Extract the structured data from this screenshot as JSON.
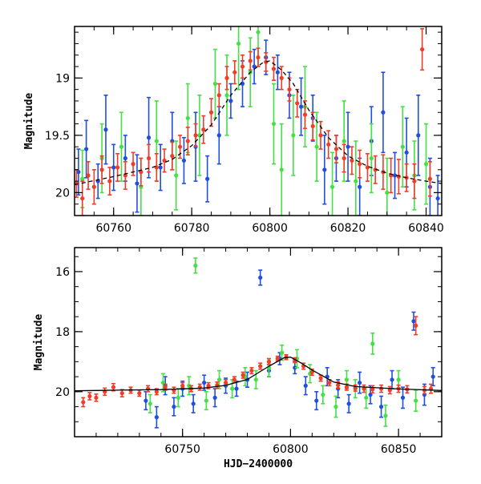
{
  "colors": {
    "blue": "#1f4fe0",
    "green": "#44e044",
    "red": "#f03c28",
    "model": "#000000"
  },
  "chart_data": [
    {
      "type": "scatter",
      "title": "",
      "xlabel": "",
      "ylabel": "Magnitude",
      "xlim": [
        60750,
        60844
      ],
      "ylim": [
        20.2,
        18.55
      ],
      "y_inverted": true,
      "grid": false,
      "xticks": [
        "60760",
        "60780",
        "60800",
        "60820",
        "60840"
      ],
      "yticks": [
        "19",
        "19.5",
        "20"
      ],
      "model_curve": {
        "style": "dashed",
        "x": [
          60750,
          60760,
          60770,
          60775,
          60780,
          60785,
          60790,
          60795,
          60798,
          60800,
          60803,
          60806,
          60810,
          60815,
          60820,
          60825,
          60830,
          60835,
          60840,
          60844
        ],
        "y": [
          19.93,
          19.86,
          19.78,
          19.71,
          19.59,
          19.41,
          19.15,
          18.95,
          18.87,
          18.85,
          18.93,
          19.05,
          19.28,
          19.52,
          19.68,
          19.77,
          19.83,
          19.87,
          19.9,
          19.92
        ]
      },
      "series": [
        {
          "color": "blue",
          "x": [
            60751,
            60753,
            60756,
            60758,
            60760,
            60763,
            60766,
            60769,
            60772,
            60775,
            60778,
            60781,
            60784,
            60787,
            60790,
            60793,
            60796,
            60799,
            60802,
            60805,
            60808,
            60811,
            60814,
            60817,
            60820,
            60823,
            60826,
            60829,
            60832,
            60835,
            60838,
            60841,
            60843
          ],
          "y": [
            19.82,
            19.62,
            19.9,
            19.45,
            19.78,
            19.7,
            19.92,
            19.52,
            19.78,
            19.55,
            19.72,
            19.6,
            19.88,
            19.5,
            19.2,
            19.05,
            18.9,
            18.82,
            18.95,
            19.15,
            19.25,
            19.35,
            19.8,
            19.7,
            19.6,
            19.95,
            19.55,
            19.3,
            19.85,
            19.65,
            19.5,
            19.95,
            20.05
          ],
          "err": [
            0.2,
            0.25,
            0.15,
            0.3,
            0.2,
            0.2,
            0.25,
            0.35,
            0.2,
            0.25,
            0.2,
            0.3,
            0.2,
            0.25,
            0.15,
            0.2,
            0.15,
            0.15,
            0.15,
            0.2,
            0.25,
            0.2,
            0.3,
            0.2,
            0.3,
            0.25,
            0.3,
            0.35,
            0.2,
            0.3,
            0.35,
            0.25,
            0.2
          ]
        },
        {
          "color": "green",
          "x": [
            60752,
            60757,
            60762,
            60767,
            60771,
            60776,
            60779,
            60782,
            60786,
            60789,
            60792,
            60795,
            60797,
            60801,
            60803,
            60806,
            60809,
            60812,
            60816,
            60819,
            60822,
            60826,
            60830,
            60834,
            60837,
            60840
          ],
          "y": [
            19.88,
            19.7,
            19.6,
            19.95,
            19.55,
            19.85,
            19.35,
            19.5,
            19.05,
            19.15,
            18.7,
            18.95,
            18.6,
            19.4,
            19.8,
            19.5,
            19.25,
            19.6,
            19.95,
            19.55,
            19.9,
            19.7,
            20.0,
            19.6,
            19.85,
            19.75
          ],
          "err": [
            0.25,
            0.3,
            0.3,
            0.25,
            0.35,
            0.3,
            0.3,
            0.35,
            0.3,
            0.35,
            0.4,
            0.3,
            0.3,
            0.35,
            0.4,
            0.35,
            0.35,
            0.3,
            0.3,
            0.35,
            0.35,
            0.3,
            0.3,
            0.35,
            0.3,
            0.35
          ]
        },
        {
          "color": "red",
          "x": [
            60750.5,
            60752,
            60753.5,
            60755,
            60757,
            60759,
            60761,
            60763,
            60765,
            60767,
            60769,
            60771,
            60773,
            60775,
            60777,
            60779,
            60781,
            60783,
            60785,
            60787,
            60789,
            60791,
            60793,
            60795,
            60797,
            60799,
            60801,
            60803,
            60805,
            60807,
            60809,
            60811,
            60813,
            60815,
            60817,
            60819,
            60821,
            60823,
            60825,
            60827,
            60829,
            60831,
            60833,
            60835,
            60837,
            60839,
            60841
          ],
          "y": [
            19.92,
            20.05,
            19.85,
            19.95,
            19.8,
            19.9,
            19.78,
            19.85,
            19.75,
            19.82,
            19.7,
            19.78,
            19.72,
            19.68,
            19.6,
            19.55,
            19.5,
            19.45,
            19.3,
            19.15,
            19.0,
            18.95,
            18.9,
            18.85,
            18.82,
            18.86,
            18.92,
            19.0,
            19.1,
            19.22,
            19.32,
            19.42,
            19.5,
            19.58,
            19.62,
            19.7,
            19.72,
            19.75,
            19.78,
            19.8,
            19.82,
            19.85,
            19.86,
            19.87,
            19.9,
            18.75,
            19.88
          ],
          "err": [
            0.12,
            0.15,
            0.12,
            0.15,
            0.12,
            0.12,
            0.12,
            0.12,
            0.1,
            0.12,
            0.12,
            0.12,
            0.1,
            0.12,
            0.1,
            0.12,
            0.1,
            0.12,
            0.12,
            0.1,
            0.1,
            0.1,
            0.1,
            0.08,
            0.08,
            0.08,
            0.1,
            0.1,
            0.1,
            0.12,
            0.12,
            0.12,
            0.12,
            0.12,
            0.12,
            0.12,
            0.12,
            0.12,
            0.12,
            0.12,
            0.15,
            0.15,
            0.15,
            0.12,
            0.15,
            0.18,
            0.15
          ]
        }
      ]
    },
    {
      "type": "scatter",
      "title": "",
      "xlabel": "HJD−2400000",
      "ylabel": "Magnitude",
      "xlim": [
        60700,
        60870
      ],
      "ylim": [
        21.5,
        15.2
      ],
      "y_inverted": true,
      "grid": false,
      "xticks": [
        "60750",
        "60800",
        "60850"
      ],
      "yticks": [
        "16",
        "18",
        "20"
      ],
      "model_curve": {
        "style": "solid",
        "x": [
          60700,
          60720,
          60740,
          60760,
          60770,
          60780,
          60790,
          60797,
          60800,
          60805,
          60810,
          60820,
          60830,
          60850,
          60870
        ],
        "y": [
          19.97,
          19.95,
          19.93,
          19.88,
          19.79,
          19.59,
          19.15,
          18.87,
          18.85,
          19.05,
          19.28,
          19.68,
          19.83,
          19.91,
          19.96
        ]
      },
      "series": [
        {
          "color": "blue",
          "x": [
            60733,
            60738,
            60742,
            60746,
            60750,
            60755,
            60760,
            60765,
            60770,
            60775,
            60780,
            60786,
            60790,
            60795,
            60802,
            60807,
            60812,
            60817,
            60822,
            60827,
            60832,
            60837,
            60842,
            60847,
            60852,
            60857,
            60862,
            60866
          ],
          "y": [
            20.3,
            20.85,
            19.8,
            20.5,
            19.9,
            20.4,
            19.7,
            20.2,
            19.8,
            19.9,
            19.6,
            16.2,
            19.3,
            18.9,
            19.2,
            19.8,
            20.3,
            19.5,
            19.9,
            20.4,
            19.7,
            20.1,
            20.5,
            19.6,
            20.2,
            17.65,
            20.1,
            19.5
          ],
          "err": [
            0.3,
            0.35,
            0.3,
            0.3,
            0.25,
            0.3,
            0.25,
            0.3,
            0.25,
            0.25,
            0.25,
            0.25,
            0.2,
            0.2,
            0.2,
            0.3,
            0.3,
            0.3,
            0.3,
            0.3,
            0.35,
            0.3,
            0.35,
            0.3,
            0.35,
            0.3,
            0.35,
            0.3
          ]
        },
        {
          "color": "green",
          "x": [
            60735,
            60741,
            60748,
            60753,
            60756,
            60761,
            60767,
            60773,
            60779,
            60784,
            60790,
            60796,
            60803,
            60809,
            60815,
            60821,
            60826,
            60830,
            60835,
            60838,
            60844,
            60850,
            60858
          ],
          "y": [
            20.4,
            19.7,
            20.2,
            19.8,
            15.8,
            20.3,
            19.6,
            19.9,
            19.5,
            19.6,
            19.2,
            18.7,
            18.9,
            19.4,
            20.1,
            20.5,
            19.6,
            19.9,
            20.2,
            18.4,
            20.8,
            19.6,
            20.3
          ],
          "err": [
            0.3,
            0.3,
            0.3,
            0.3,
            0.25,
            0.3,
            0.3,
            0.3,
            0.3,
            0.3,
            0.3,
            0.25,
            0.3,
            0.3,
            0.3,
            0.35,
            0.3,
            0.3,
            0.35,
            0.35,
            0.35,
            0.3,
            0.35
          ]
        },
        {
          "color": "red",
          "x": [
            60704,
            60707,
            60710,
            60714,
            60718,
            60722,
            60726,
            60730,
            60734,
            60738,
            60742,
            60746,
            60750,
            60754,
            60758,
            60762,
            60766,
            60770,
            60774,
            60778,
            60782,
            60786,
            60790,
            60794,
            60798,
            60802,
            60806,
            60810,
            60814,
            60818,
            60822,
            60826,
            60830,
            60834,
            60838,
            60842,
            60846,
            60850,
            60854,
            60858,
            60862,
            60865
          ],
          "y": [
            20.35,
            20.15,
            20.2,
            20.0,
            19.85,
            20.05,
            19.95,
            20.05,
            19.9,
            20.0,
            19.85,
            19.95,
            19.8,
            19.9,
            19.85,
            19.8,
            19.78,
            19.7,
            19.6,
            19.45,
            19.3,
            19.15,
            19.0,
            18.9,
            18.85,
            18.95,
            19.15,
            19.35,
            19.55,
            19.7,
            19.78,
            19.85,
            19.88,
            19.9,
            19.92,
            19.9,
            19.95,
            19.9,
            19.92,
            17.8,
            19.95,
            19.9
          ],
          "err": [
            0.15,
            0.12,
            0.12,
            0.12,
            0.12,
            0.12,
            0.1,
            0.1,
            0.1,
            0.1,
            0.1,
            0.1,
            0.1,
            0.1,
            0.1,
            0.1,
            0.1,
            0.1,
            0.1,
            0.1,
            0.1,
            0.1,
            0.1,
            0.08,
            0.08,
            0.08,
            0.1,
            0.1,
            0.1,
            0.1,
            0.1,
            0.1,
            0.1,
            0.12,
            0.12,
            0.12,
            0.12,
            0.12,
            0.12,
            0.3,
            0.12,
            0.15
          ]
        }
      ]
    }
  ]
}
